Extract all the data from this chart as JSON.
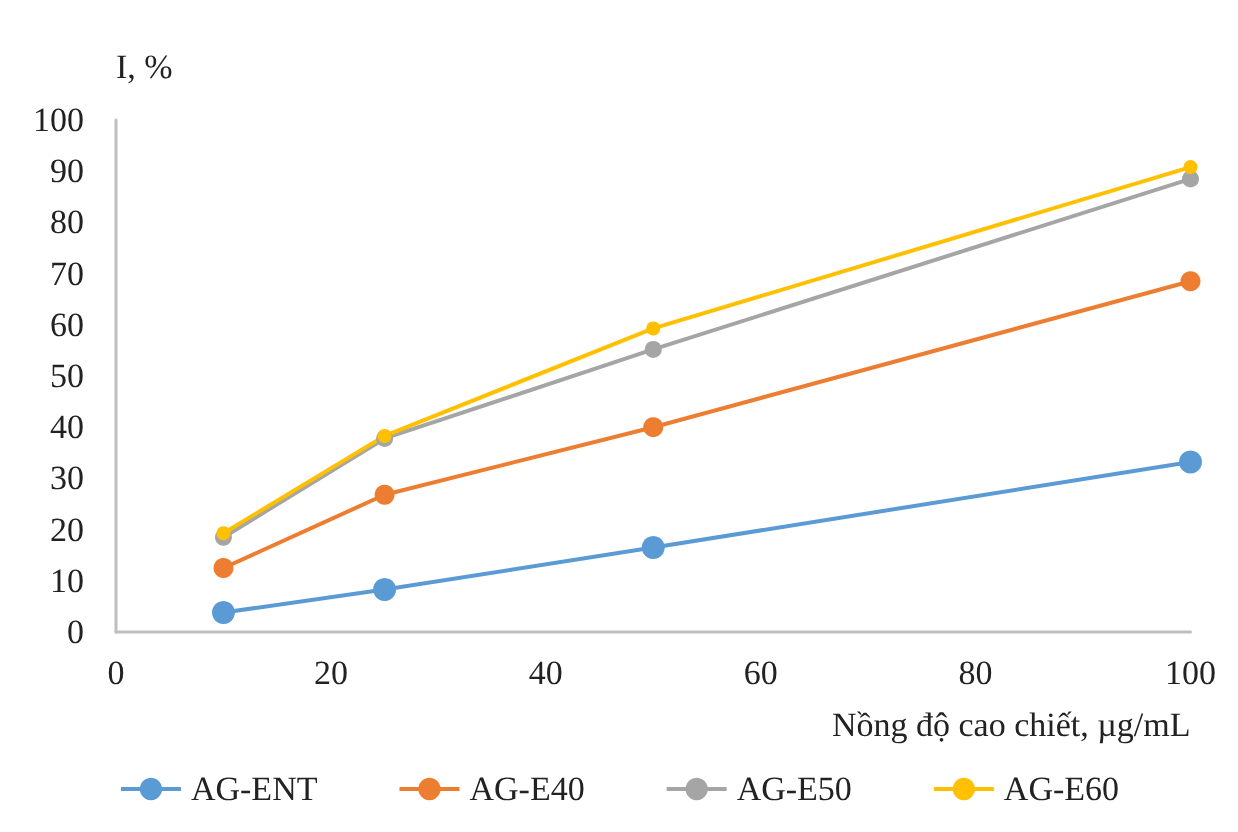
{
  "chart_data": {
    "type": "line",
    "xlabel": "Nồng độ cao chiết, µg/mL",
    "ylabel": "I, %",
    "x": [
      10,
      25,
      50,
      100
    ],
    "xlim": [
      0,
      100
    ],
    "xticks": [
      0,
      20,
      40,
      60,
      80,
      100
    ],
    "ylim": [
      0,
      100
    ],
    "yticks": [
      0,
      10,
      20,
      30,
      40,
      50,
      60,
      70,
      80,
      90,
      100
    ],
    "grid": false,
    "legend": "bottom",
    "marker": "circle",
    "line_style": "solid",
    "series": [
      {
        "name": "AG-ENT",
        "color": "#5b9bd5",
        "values": [
          3.8,
          8.3,
          16.5,
          33.2
        ]
      },
      {
        "name": "AG-E40",
        "color": "#ed7d31",
        "values": [
          12.5,
          26.8,
          40,
          68.5
        ]
      },
      {
        "name": "AG-E50",
        "color": "#a5a5a5",
        "values": [
          18.5,
          37.8,
          55.2,
          88.5
        ]
      },
      {
        "name": "AG-E60",
        "color": "#ffc000",
        "values": [
          19.3,
          38.3,
          59.3,
          90.8
        ]
      }
    ]
  }
}
